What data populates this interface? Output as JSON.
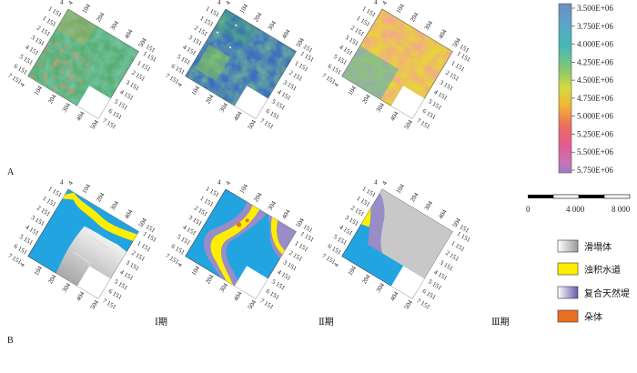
{
  "figure": {
    "panel_a_label": "A",
    "panel_b_label": "B",
    "phases": [
      "Ⅰ期",
      "Ⅱ期",
      "Ⅲ期"
    ],
    "grid_ticks": {
      "edge_rows": [
        "1 151",
        "1 151",
        "2 151",
        "3 151",
        "4 151",
        "5 151",
        "6 151",
        "7 151"
      ],
      "edge_cols": [
        "4",
        "104",
        "204",
        "304",
        "404",
        "504"
      ],
      "corner_upper": "151",
      "corner_lower": "4"
    }
  },
  "colorbar": {
    "labels": [
      "3.500E+06",
      "3.750E+06",
      "4.000E+06",
      "4.250E+06",
      "4.500E+06",
      "4.750E+06",
      "5.000E+06",
      "5.250E+06",
      "5.500E+06",
      "5.750E+06"
    ],
    "colors": [
      "#6b8fbf",
      "#5aa5c8",
      "#46b8b6",
      "#7cc47a",
      "#d6d93e",
      "#f0b832",
      "#ec6d5a",
      "#e25b95",
      "#c974b7",
      "#9b7cc0"
    ]
  },
  "scale_bar": {
    "ticks": [
      "0",
      "4 000",
      "8 000"
    ]
  },
  "legend": {
    "items": [
      {
        "label": "滑塌体",
        "icon": "gray-gradient-swatch",
        "color": "#cccccc"
      },
      {
        "label": "浊积水道",
        "icon": "yellow-swatch",
        "color": "#ffee00"
      },
      {
        "label": "复合天然堤",
        "icon": "purple-gradient-swatch",
        "color": "#8a7ab8"
      },
      {
        "label": "朵体",
        "icon": "orange-swatch",
        "color": "#e87020"
      }
    ]
  },
  "palette": {
    "background_blue": "#22a4e0",
    "channel_yellow": "#ffee00",
    "slump_gray": "#c8c8c8",
    "levee_purple": "#9a8cc6",
    "lobe_orange": "#e87020"
  }
}
